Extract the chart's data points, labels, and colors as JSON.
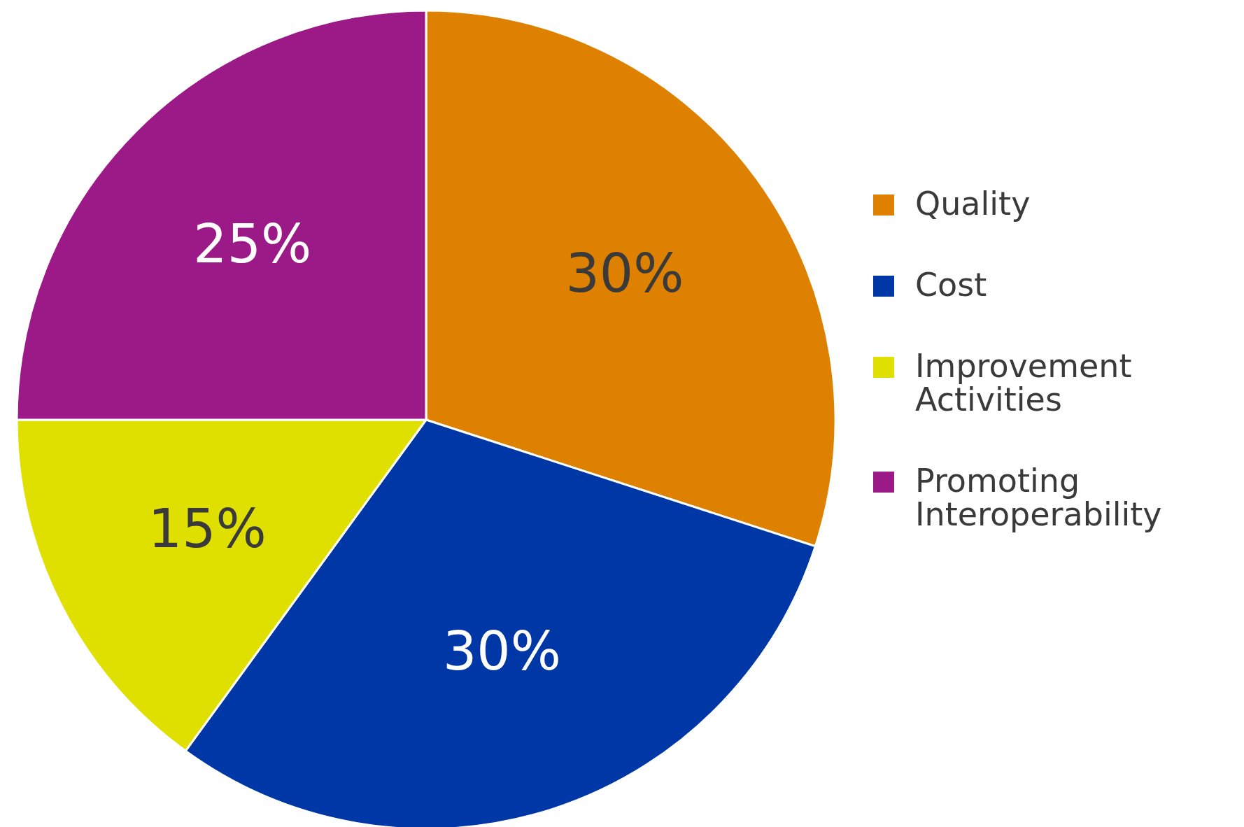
{
  "chart_data": {
    "type": "pie",
    "categories": [
      "Quality",
      "Cost",
      "Improvement Activities",
      "Promoting Interoperability"
    ],
    "values": [
      30,
      30,
      15,
      25
    ],
    "value_labels": [
      "30%",
      "30%",
      "15%",
      "25%"
    ],
    "colors": [
      "#df8100",
      "#0037a6",
      "#dfe000",
      "#9c1a87"
    ],
    "legend": "right"
  }
}
